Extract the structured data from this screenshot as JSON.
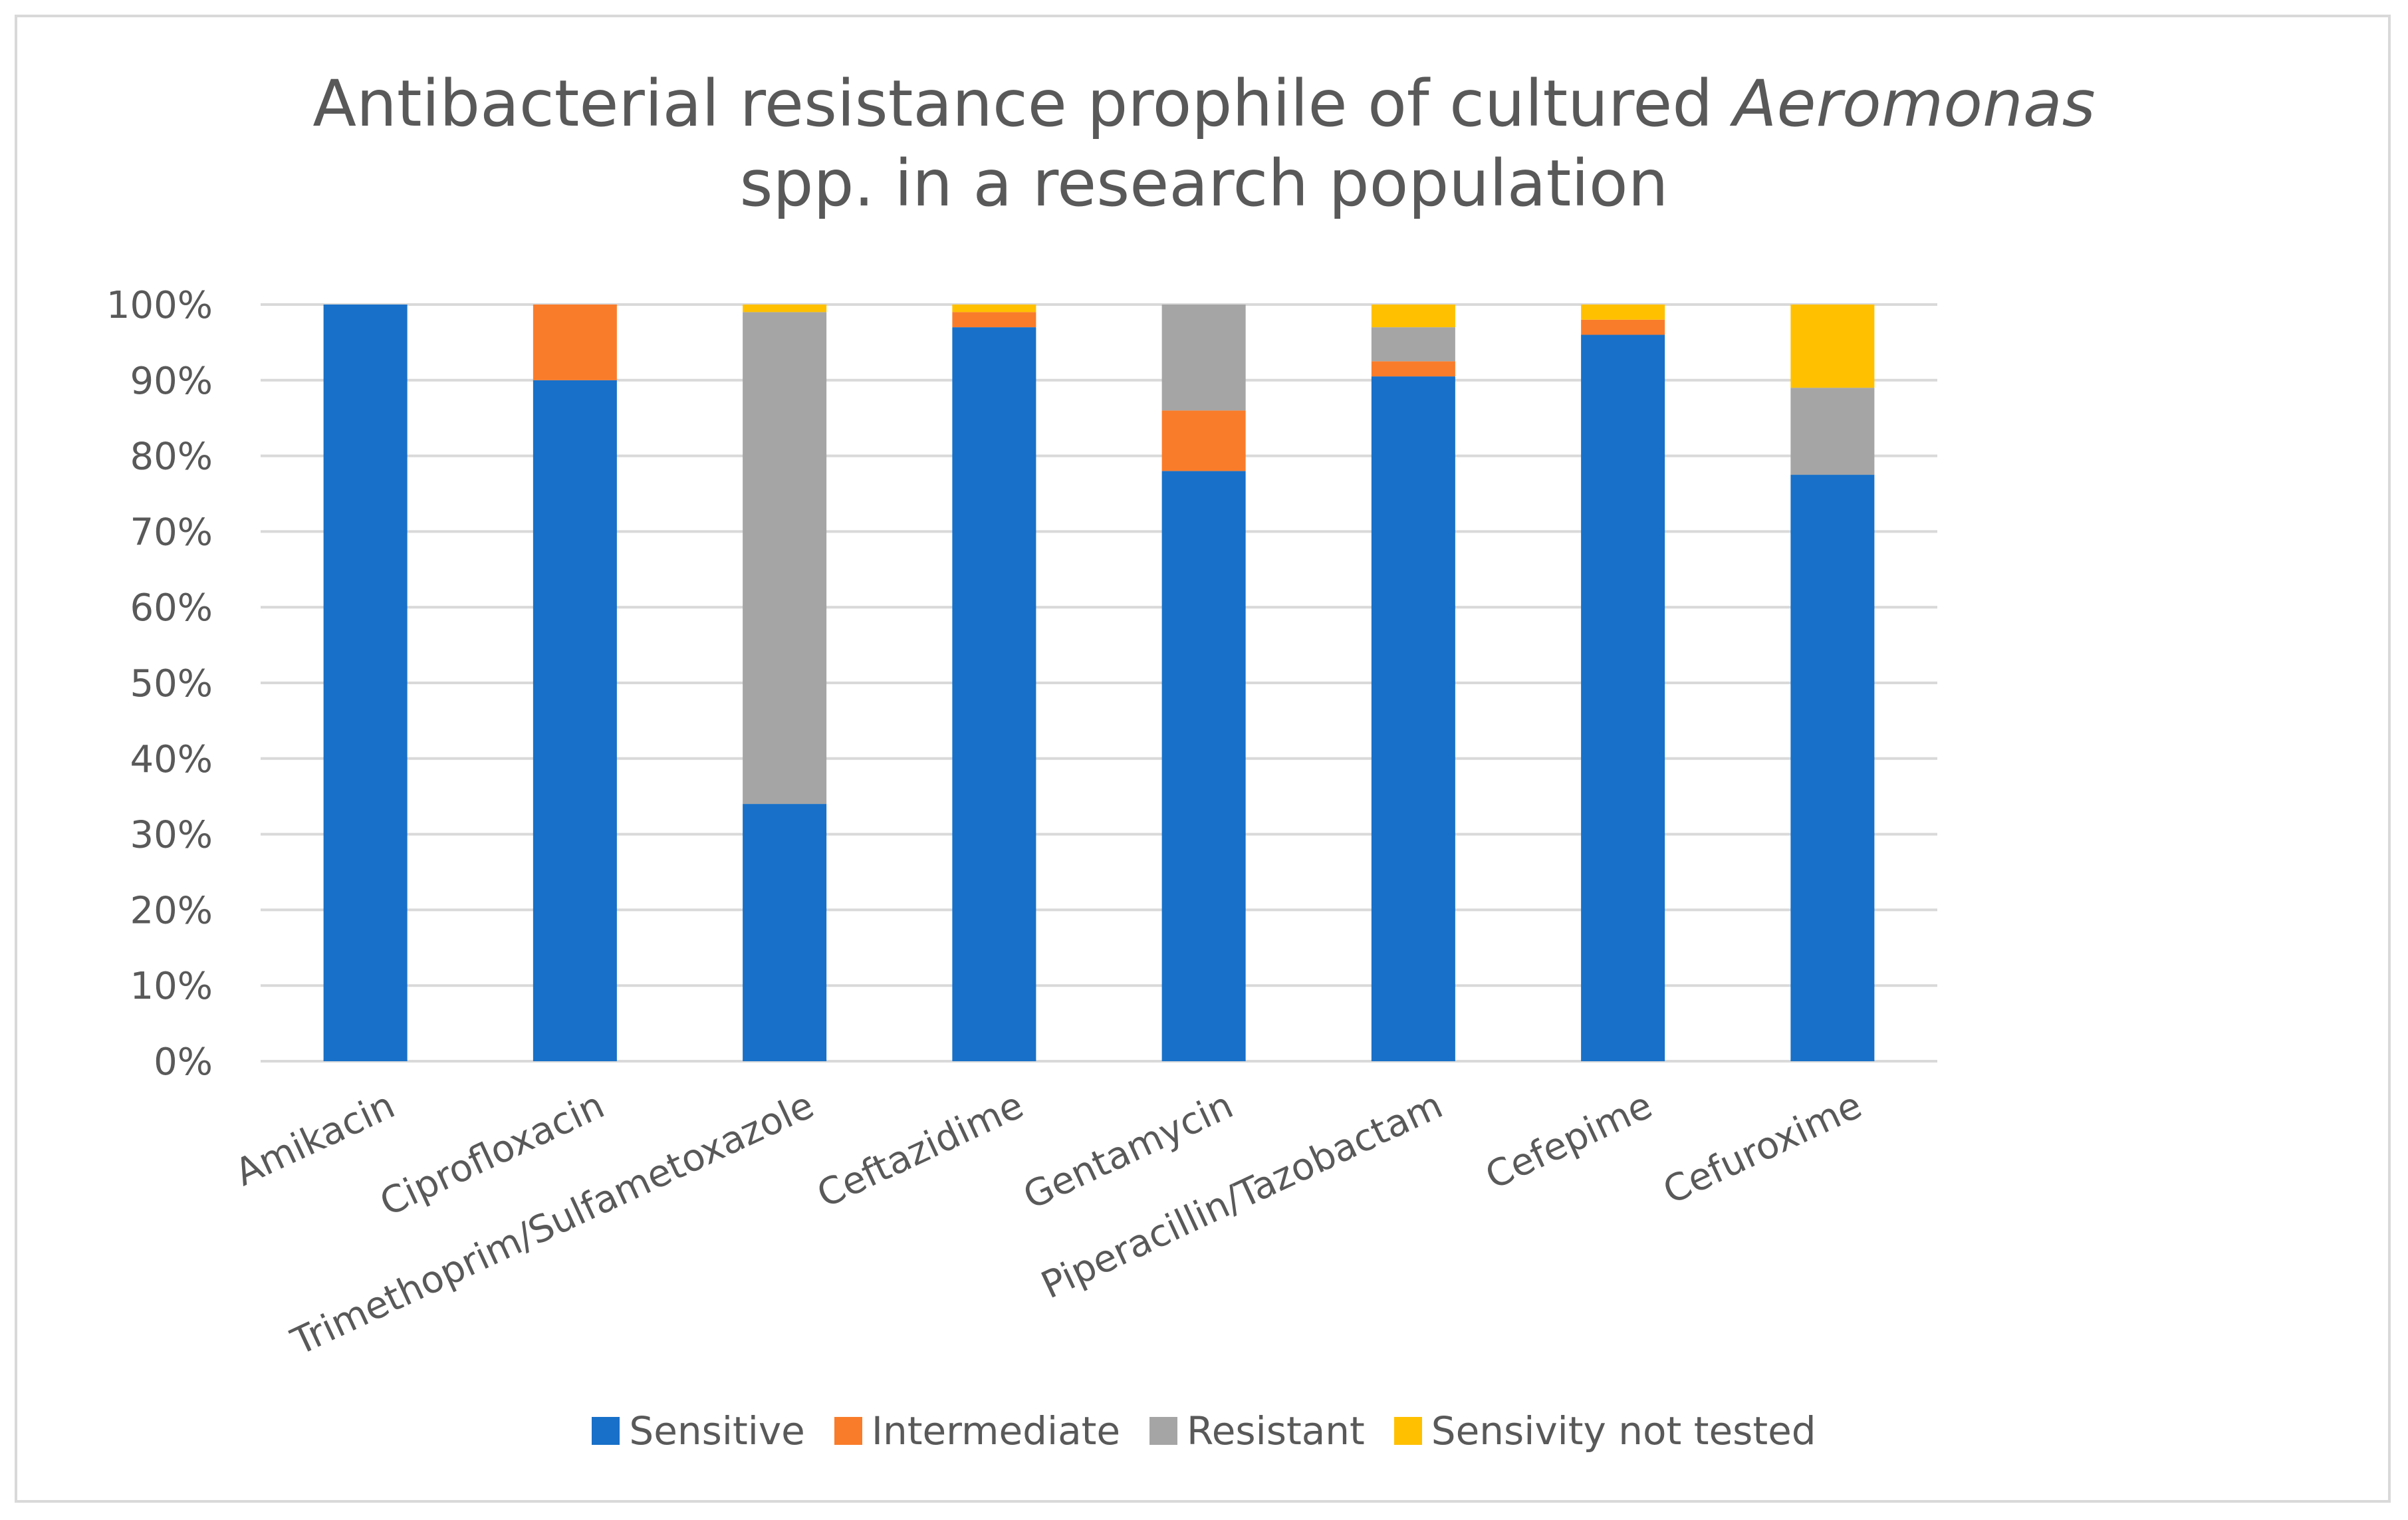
{
  "chart_data": {
    "type": "bar",
    "stacked": true,
    "title_line1_prefix": "Antibacterial resistance prophile of cultured ",
    "title_line1_italic": "Aeromonas",
    "title_line2": "spp. in a research population",
    "xlabel": "",
    "ylabel": "",
    "ylim": [
      0,
      100
    ],
    "ytick_format": "percent",
    "yticks": [
      "0%",
      "10%",
      "20%",
      "30%",
      "40%",
      "50%",
      "60%",
      "70%",
      "80%",
      "90%",
      "100%"
    ],
    "grid": true,
    "legend_position": "bottom",
    "categories": [
      "Amikacin",
      "Ciprofloxacin",
      "Trimethoprim/Sulfametoxazole",
      "Ceftazidime",
      "Gentamycin",
      "Piperacillin/Tazobactam",
      "Cefepime",
      "Cefuroxime"
    ],
    "series": [
      {
        "name": "Sensitive",
        "color": "#1870c8",
        "values": [
          100,
          90,
          34,
          97,
          78,
          90.5,
          96,
          77.5
        ]
      },
      {
        "name": "Intermediate",
        "color": "#f97c2a",
        "values": [
          0,
          10,
          0,
          2,
          8,
          2,
          2,
          0
        ]
      },
      {
        "name": "Resistant",
        "color": "#a5a5a5",
        "values": [
          0,
          0,
          65,
          0,
          14,
          4.5,
          0,
          11.5
        ]
      },
      {
        "name": "Sensivity not tested",
        "color": "#ffc000",
        "values": [
          0,
          0,
          1,
          1,
          0,
          3,
          2,
          11
        ]
      }
    ]
  }
}
